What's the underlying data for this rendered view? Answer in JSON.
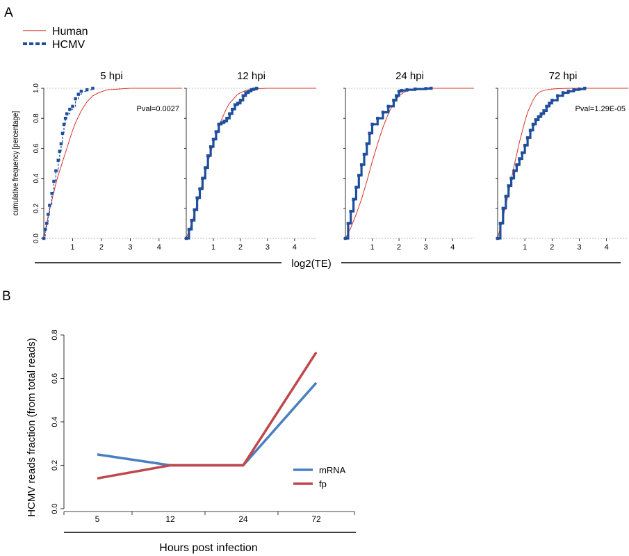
{
  "panels": {
    "a": "A",
    "b": "B"
  },
  "legend_a": {
    "human": {
      "label": "Human",
      "color": "#d9312b"
    },
    "hcmv": {
      "label": "HCMV",
      "color": "#1f4e9b"
    }
  },
  "panel_a": {
    "ylabel": "cumulative frequency [percentage]",
    "xlabel": "log2(TE)",
    "yticks": [
      "0.0",
      "0.2",
      "0.4",
      "0.6",
      "0.8",
      "1.0"
    ],
    "xticks": [
      "1",
      "2",
      "3",
      "4"
    ]
  },
  "chart_data": [
    {
      "type": "line",
      "title": "5 hpi",
      "annotation": "Pval=0.0027",
      "xlim": [
        0,
        4.8
      ],
      "ylim": [
        0,
        1
      ],
      "series": [
        {
          "name": "Human",
          "x": [
            0,
            0.1,
            0.2,
            0.3,
            0.4,
            0.5,
            0.6,
            0.7,
            0.8,
            0.9,
            1.0,
            1.1,
            1.2,
            1.3,
            1.4,
            1.5,
            1.7,
            1.9,
            2.2,
            2.6,
            3.0,
            4.8
          ],
          "y": [
            0,
            0.1,
            0.19,
            0.27,
            0.35,
            0.42,
            0.48,
            0.54,
            0.6,
            0.66,
            0.72,
            0.77,
            0.81,
            0.85,
            0.88,
            0.91,
            0.95,
            0.97,
            0.99,
            0.995,
            1.0,
            1.0
          ]
        },
        {
          "name": "HCMV",
          "x": [
            0,
            0.05,
            0.1,
            0.15,
            0.2,
            0.28,
            0.35,
            0.42,
            0.5,
            0.55,
            0.6,
            0.65,
            0.7,
            0.75,
            0.8,
            0.9,
            1.0,
            1.1,
            1.2,
            1.3,
            1.5,
            1.7
          ],
          "y": [
            0,
            0.06,
            0.1,
            0.16,
            0.22,
            0.3,
            0.38,
            0.45,
            0.52,
            0.58,
            0.63,
            0.7,
            0.76,
            0.8,
            0.83,
            0.86,
            0.88,
            0.93,
            0.96,
            0.98,
            0.99,
            1.0
          ]
        }
      ]
    },
    {
      "type": "line",
      "title": "12 hpi",
      "annotation": "",
      "xlim": [
        0,
        4.8
      ],
      "ylim": [
        0,
        1
      ],
      "series": [
        {
          "name": "Human",
          "x": [
            0,
            0.1,
            0.2,
            0.3,
            0.4,
            0.5,
            0.6,
            0.7,
            0.8,
            0.9,
            1.0,
            1.1,
            1.2,
            1.3,
            1.4,
            1.5,
            1.6,
            1.7,
            1.8,
            1.9,
            2.0,
            2.2,
            2.4,
            2.7,
            3.0,
            4.8
          ],
          "y": [
            0,
            0.05,
            0.1,
            0.16,
            0.23,
            0.3,
            0.37,
            0.44,
            0.51,
            0.57,
            0.63,
            0.69,
            0.74,
            0.79,
            0.83,
            0.87,
            0.9,
            0.92,
            0.94,
            0.96,
            0.97,
            0.985,
            0.993,
            0.998,
            1.0,
            1.0
          ]
        },
        {
          "name": "HCMV",
          "x": [
            0,
            0.1,
            0.2,
            0.3,
            0.4,
            0.5,
            0.6,
            0.7,
            0.8,
            0.9,
            1.0,
            1.1,
            1.2,
            1.3,
            1.4,
            1.5,
            1.6,
            1.7,
            1.8,
            1.9,
            2.0,
            2.1,
            2.2,
            2.3,
            2.4,
            2.5,
            2.6
          ],
          "y": [
            0,
            0.06,
            0.12,
            0.19,
            0.27,
            0.33,
            0.4,
            0.47,
            0.55,
            0.61,
            0.66,
            0.71,
            0.76,
            0.77,
            0.78,
            0.8,
            0.83,
            0.86,
            0.89,
            0.9,
            0.92,
            0.95,
            0.97,
            0.98,
            0.99,
            0.995,
            1.0
          ]
        }
      ]
    },
    {
      "type": "line",
      "title": "24 hpi",
      "annotation": "",
      "xlim": [
        0,
        4.8
      ],
      "ylim": [
        0,
        1
      ],
      "series": [
        {
          "name": "Human",
          "x": [
            0,
            0.2,
            0.4,
            0.6,
            0.8,
            1.0,
            1.2,
            1.4,
            1.6,
            1.8,
            2.0,
            2.2,
            2.4,
            2.7,
            3.0,
            4.8
          ],
          "y": [
            0,
            0.07,
            0.16,
            0.26,
            0.38,
            0.51,
            0.63,
            0.74,
            0.83,
            0.9,
            0.95,
            0.975,
            0.99,
            0.997,
            1.0,
            1.0
          ]
        },
        {
          "name": "HCMV",
          "x": [
            0,
            0.1,
            0.2,
            0.3,
            0.4,
            0.5,
            0.6,
            0.7,
            0.8,
            0.9,
            1.0,
            1.2,
            1.4,
            1.6,
            1.8,
            1.9,
            2.0,
            2.1,
            2.3,
            2.6,
            3.0,
            3.2
          ],
          "y": [
            0,
            0.1,
            0.18,
            0.26,
            0.34,
            0.42,
            0.49,
            0.56,
            0.63,
            0.7,
            0.76,
            0.8,
            0.84,
            0.88,
            0.92,
            0.95,
            0.98,
            0.985,
            0.99,
            0.995,
            0.998,
            1.0
          ]
        }
      ]
    },
    {
      "type": "line",
      "title": "72 hpi",
      "annotation": "Pval=1.29E-05",
      "xlim": [
        0,
        4.8
      ],
      "ylim": [
        0,
        1
      ],
      "series": [
        {
          "name": "Human",
          "x": [
            0,
            0.1,
            0.2,
            0.3,
            0.4,
            0.5,
            0.6,
            0.7,
            0.8,
            0.9,
            1.0,
            1.1,
            1.2,
            1.3,
            1.4,
            1.5,
            1.6,
            1.8,
            2.0,
            2.3,
            2.7,
            3.0,
            4.8
          ],
          "y": [
            0,
            0.07,
            0.14,
            0.22,
            0.3,
            0.39,
            0.48,
            0.56,
            0.64,
            0.71,
            0.78,
            0.84,
            0.88,
            0.92,
            0.95,
            0.97,
            0.98,
            0.99,
            0.995,
            0.998,
            1.0,
            1.0,
            1.0
          ]
        },
        {
          "name": "HCMV",
          "x": [
            0,
            0.1,
            0.2,
            0.3,
            0.4,
            0.5,
            0.6,
            0.7,
            0.8,
            0.9,
            1.0,
            1.1,
            1.2,
            1.3,
            1.4,
            1.5,
            1.6,
            1.7,
            1.8,
            1.9,
            2.0,
            2.2,
            2.4,
            2.6,
            2.8,
            3.0,
            3.2
          ],
          "y": [
            0,
            0.1,
            0.2,
            0.28,
            0.35,
            0.4,
            0.45,
            0.49,
            0.53,
            0.57,
            0.62,
            0.67,
            0.72,
            0.76,
            0.79,
            0.81,
            0.83,
            0.85,
            0.88,
            0.9,
            0.92,
            0.95,
            0.97,
            0.98,
            0.99,
            0.995,
            1.0
          ]
        }
      ]
    },
    {
      "type": "line",
      "title": "",
      "xlabel": "Hours post infection",
      "ylabel": "HCMV reads fraction (from total reads)",
      "categories": [
        "5",
        "12",
        "24",
        "72"
      ],
      "ylim": [
        0,
        0.8
      ],
      "yticks": [
        "0.0",
        "0.2",
        "0.4",
        "0.6",
        "0.8"
      ],
      "legend_position": "right",
      "series": [
        {
          "name": "mRNA",
          "color": "#4a7fbf",
          "values": [
            0.25,
            0.2,
            0.2,
            0.58
          ]
        },
        {
          "name": "fp",
          "color": "#c0474c",
          "values": [
            0.14,
            0.2,
            0.2,
            0.72
          ]
        }
      ]
    }
  ]
}
